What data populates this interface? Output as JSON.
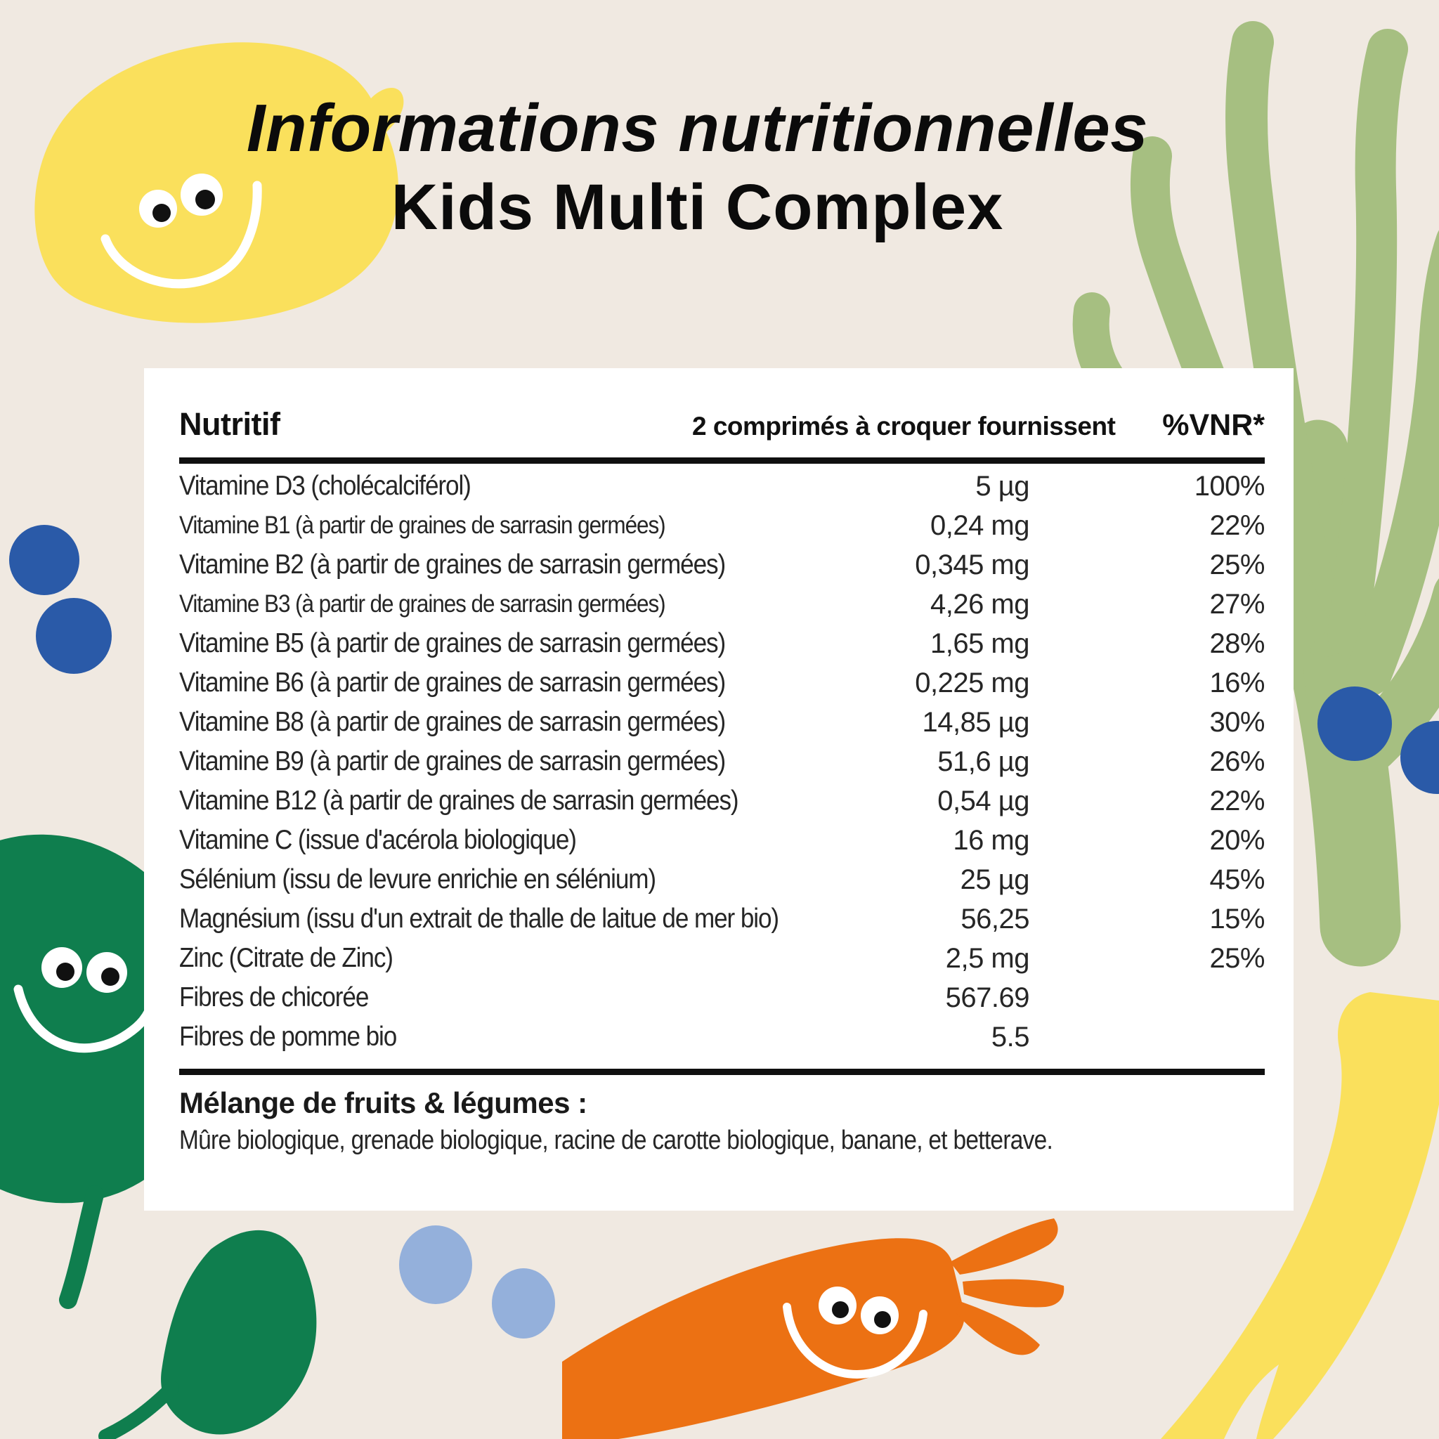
{
  "title": {
    "line1": "Informations nutritionnelles",
    "line2": "Kids Multi Complex"
  },
  "table": {
    "headers": {
      "nutrient": "Nutritif",
      "amount": "2 comprimés à croquer fournissent",
      "vnr": "%VNR*"
    },
    "rows": [
      {
        "nutrient": "Vitamine D3 (cholécalciférol)",
        "amount": "5 µg",
        "vnr": "100%"
      },
      {
        "nutrient": "Vitamine B1 (à partir de graines de sarrasin germées)",
        "amount": "0,24 mg",
        "vnr": "22%"
      },
      {
        "nutrient": "Vitamine B2 (à partir de graines de sarrasin germées)",
        "amount": "0,345 mg",
        "vnr": "25%"
      },
      {
        "nutrient": "Vitamine B3 (à partir de graines de sarrasin germées)",
        "amount": "4,26 mg",
        "vnr": "27%"
      },
      {
        "nutrient": "Vitamine B5 (à partir de graines de sarrasin germées)",
        "amount": "1,65 mg",
        "vnr": "28%"
      },
      {
        "nutrient": "Vitamine B6 (à partir de graines de sarrasin germées)",
        "amount": "0,225 mg",
        "vnr": "16%"
      },
      {
        "nutrient": "Vitamine B8 (à partir de graines de sarrasin germées)",
        "amount": "14,85 µg",
        "vnr": "30%"
      },
      {
        "nutrient": "Vitamine B9 (à partir de graines de sarrasin germées)",
        "amount": "51,6 µg",
        "vnr": "26%"
      },
      {
        "nutrient": "Vitamine B12 (à partir de graines de sarrasin germées)",
        "amount": "0,54 µg",
        "vnr": "22%"
      },
      {
        "nutrient": "Vitamine C (issue d'acérola biologique)",
        "amount": "16 mg",
        "vnr": "20%"
      },
      {
        "nutrient": "Sélénium (issu de levure enrichie en sélénium)",
        "amount": "25 µg",
        "vnr": "45%"
      },
      {
        "nutrient": "Magnésium (issu d'un extrait de thalle de laitue de mer bio)",
        "amount": "56,25",
        "vnr": "15%"
      },
      {
        "nutrient": "Zinc (Citrate de Zinc)",
        "amount": "2,5 mg",
        "vnr": "25%"
      },
      {
        "nutrient": "Fibres de chicorée",
        "amount": "567.69",
        "vnr": ""
      },
      {
        "nutrient": "Fibres de pomme bio",
        "amount": "5.5",
        "vnr": ""
      }
    ],
    "footnote": {
      "heading": "Mélange de fruits & légumes :",
      "text": "Mûre biologique, grenade biologique, racine de carotte biologique, banane, et betterave."
    }
  },
  "decor": {
    "items": [
      {
        "name": "lemon-illustration",
        "color": "#FAE05C"
      },
      {
        "name": "seaweed-illustration",
        "color": "#A6BF81"
      },
      {
        "name": "blueberries-dark",
        "color": "#2A5AA8"
      },
      {
        "name": "blueberries-light",
        "color": "#94B0DB"
      },
      {
        "name": "spinach-leaf-smiling",
        "color": "#0F7E4E"
      },
      {
        "name": "spinach-leaf",
        "color": "#0F7E4E"
      },
      {
        "name": "carrot-smiling",
        "color": "#EC7113"
      },
      {
        "name": "banana-illustration",
        "color": "#FAE05C"
      }
    ]
  },
  "colors": {
    "background": "#F0E9E1",
    "card": "#FFFFFF",
    "text": "#262626",
    "rule": "#101010"
  }
}
